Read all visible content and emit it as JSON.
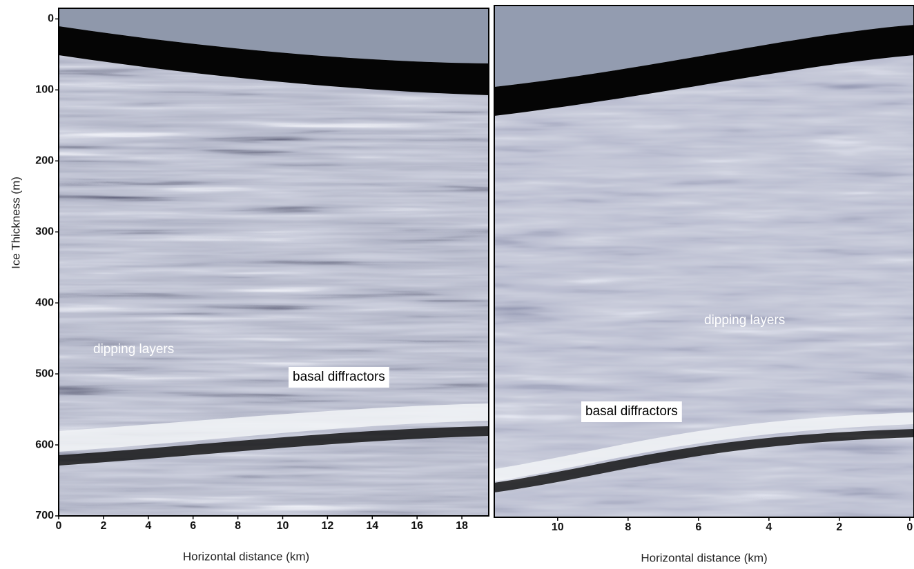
{
  "panels": [
    {
      "x_label": "Horizontal distance (km)",
      "y_label": "Ice Thickness (m)",
      "xlim": [
        0,
        19.2
      ],
      "ylim": [
        -15,
        700
      ],
      "xticks": [
        0,
        2,
        4,
        6,
        8,
        10,
        12,
        14,
        16,
        18
      ],
      "yticks": [
        0,
        100,
        200,
        300,
        400,
        500,
        600,
        700
      ],
      "annotations": [
        "dipping layers",
        "basal diffractors"
      ]
    },
    {
      "x_label": "Horizontal distance (km)",
      "xlim": [
        11.8,
        -0.12
      ],
      "xticks": [
        10,
        8,
        6,
        4,
        2,
        0
      ],
      "annotations": [
        "dipping layers",
        "basal diffractors"
      ]
    }
  ]
}
